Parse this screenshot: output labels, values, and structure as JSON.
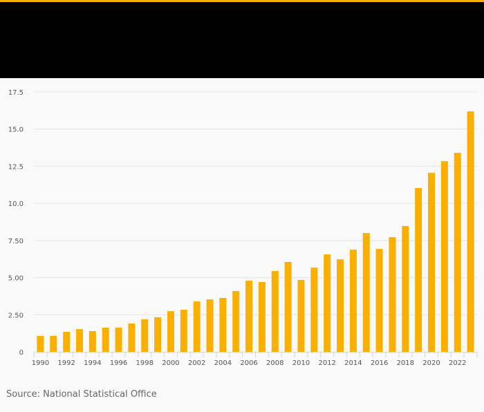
{
  "colors": {
    "bar": "#f9b000",
    "accent": "#f9b000",
    "header": "#000000",
    "grid": "#e3e3e3",
    "axis": "#ccd6eb"
  },
  "source": "Source: National Statistical Office",
  "chart_data": {
    "type": "bar",
    "title": "",
    "xlabel": "",
    "ylabel": "",
    "ylim": [
      0,
      17.5
    ],
    "grid": true,
    "yticks": [
      0,
      2.5,
      5,
      7.5,
      10,
      12.5,
      15,
      17.5
    ],
    "ytick_labels": [
      "0",
      "2.50",
      "5.00",
      "7.50",
      "10.0",
      "12.5",
      "15.0",
      "17.5"
    ],
    "xtick_labels": [
      "1990",
      "1992",
      "1994",
      "1996",
      "1998",
      "2000",
      "2002",
      "2004",
      "2006",
      "2008",
      "2010",
      "2012",
      "2014",
      "2016",
      "2018",
      "2020",
      "2022"
    ],
    "categories": [
      "1990",
      "1991",
      "1992",
      "1993",
      "1994",
      "1995",
      "1996",
      "1997",
      "1998",
      "1999",
      "2000",
      "2001",
      "2002",
      "2003",
      "2004",
      "2005",
      "2006",
      "2007",
      "2008",
      "2009",
      "2010",
      "2011",
      "2012",
      "2013",
      "2014",
      "2015",
      "2016",
      "2017",
      "2018",
      "2019",
      "2020",
      "2021",
      "2022",
      "2023"
    ],
    "values": [
      1.07,
      1.07,
      1.35,
      1.53,
      1.4,
      1.63,
      1.63,
      1.91,
      2.19,
      2.33,
      2.74,
      2.84,
      3.4,
      3.53,
      3.63,
      4.09,
      4.79,
      4.7,
      5.44,
      6.05,
      4.84,
      5.67,
      6.56,
      6.23,
      6.88,
      8.0,
      6.93,
      7.72,
      8.47,
      11.03,
      12.05,
      12.84,
      13.4,
      16.19
    ]
  }
}
